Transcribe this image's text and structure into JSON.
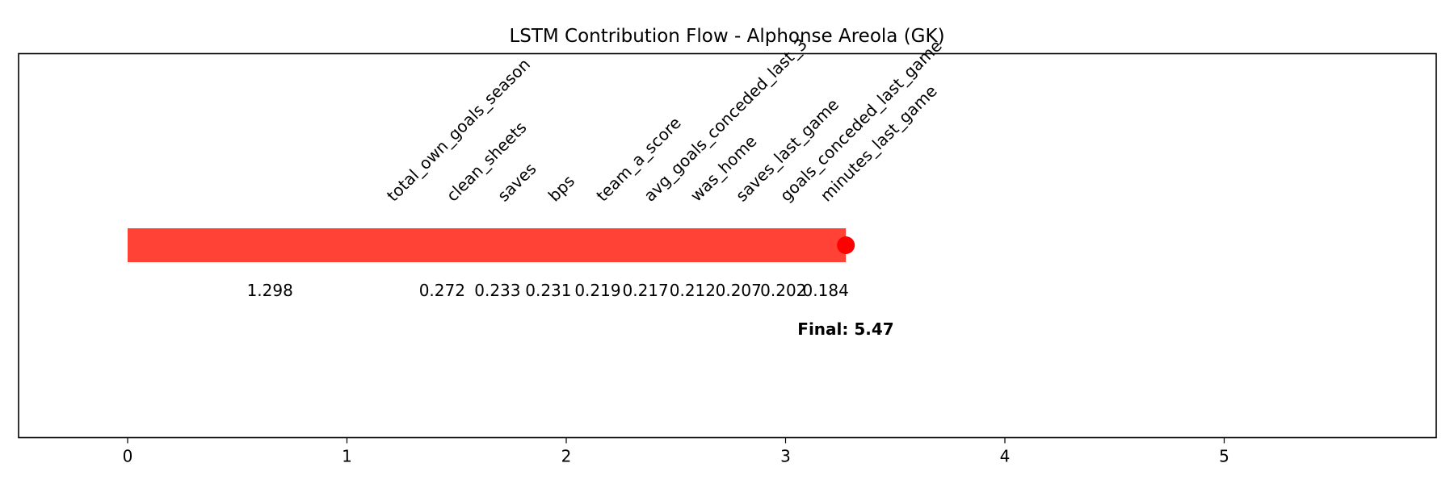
{
  "chart_data": {
    "type": "bar",
    "title": "LSTM Contribution Flow - Alphonse Areola (GK)",
    "xlabel": "",
    "ylabel": "",
    "xlim": [
      -0.5,
      5.97
    ],
    "x_ticks": [
      0,
      1,
      2,
      3,
      4,
      5
    ],
    "x_tick_labels": [
      "0",
      "1",
      "2",
      "3",
      "4",
      "5"
    ],
    "y_ticks": [],
    "grid": false,
    "bar_color": "#ff4136",
    "marker_color": "#ff0000",
    "contributions": [
      {
        "feature": "total_own_goals_season",
        "value": 1.298,
        "label": "1.298"
      },
      {
        "feature": "clean_sheets",
        "value": 0.272,
        "label": "0.272"
      },
      {
        "feature": "saves",
        "value": 0.233,
        "label": "0.233"
      },
      {
        "feature": "bps",
        "value": 0.231,
        "label": "0.231"
      },
      {
        "feature": "team_a_score",
        "value": 0.219,
        "label": "0.219"
      },
      {
        "feature": "avg_goals_conceded_last_3",
        "value": 0.217,
        "label": "0.217"
      },
      {
        "feature": "was_home",
        "value": 0.212,
        "label": "0.212"
      },
      {
        "feature": "saves_last_game",
        "value": 0.207,
        "label": "0.207"
      },
      {
        "feature": "goals_conceded_last_game",
        "value": 0.202,
        "label": "0.202"
      },
      {
        "feature": "minutes_last_game",
        "value": 0.184,
        "label": "0.184"
      }
    ],
    "end_point": 3.275,
    "final_label": "Final: 5.47"
  }
}
